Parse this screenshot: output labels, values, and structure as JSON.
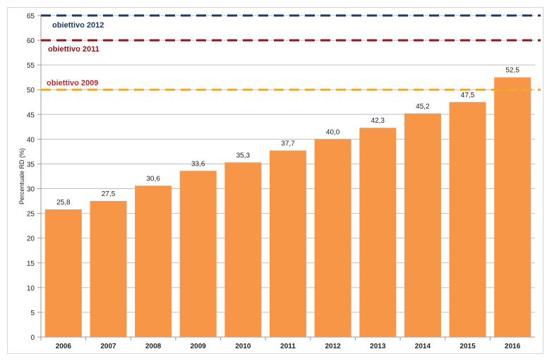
{
  "chart_data": {
    "type": "bar",
    "categories": [
      "2006",
      "2007",
      "2008",
      "2009",
      "2010",
      "2011",
      "2012",
      "2013",
      "2014",
      "2015",
      "2016"
    ],
    "values": [
      25.8,
      27.5,
      30.6,
      33.6,
      35.3,
      37.7,
      40.0,
      42.3,
      45.2,
      47.5,
      52.5
    ],
    "data_labels": [
      "25,8",
      "27,5",
      "30,6",
      "33,6",
      "35,3",
      "37,7",
      "40,0",
      "42,3",
      "45,2",
      "47,5",
      "52,5"
    ],
    "title": "",
    "xlabel": "",
    "ylabel": "Percentuale RD (%)",
    "ylim": [
      0,
      65
    ],
    "yticks": [
      0,
      5,
      10,
      15,
      20,
      25,
      30,
      35,
      40,
      45,
      50,
      55,
      60,
      65
    ],
    "grid": true,
    "bar_color": "#f79646",
    "reference_lines": [
      {
        "label": "obiettivo 2012",
        "value": 65,
        "color": "#1f3864"
      },
      {
        "label": "obiettivo 2011",
        "value": 60,
        "color": "#8b1a1a"
      },
      {
        "label": "obiettivo 2009",
        "value": 50,
        "color": "#f0a830",
        "label_color": "#c0282d"
      }
    ]
  }
}
